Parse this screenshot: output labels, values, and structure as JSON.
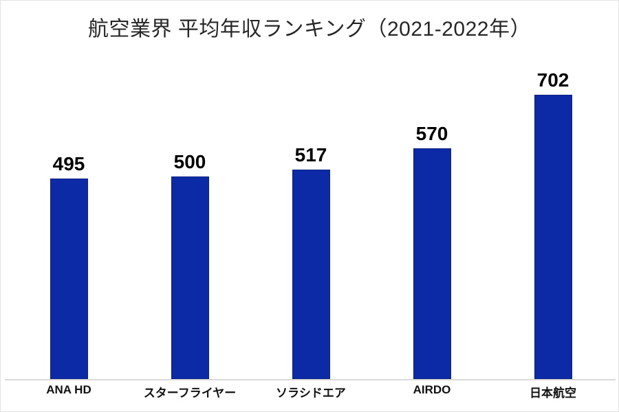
{
  "page": {
    "background": "#ffffff",
    "border_color": "#e3e3e3"
  },
  "chart_data": {
    "type": "bar",
    "title": "航空業界 平均年収ランキング（2021-2022年）",
    "categories": [
      "ANA HD",
      "スターフライヤー",
      "ソラシドエア",
      "AIRDO",
      "日本航空"
    ],
    "values": [
      495,
      500,
      517,
      570,
      702
    ],
    "data_labels_shown": true,
    "xlabel": "",
    "ylabel": "",
    "ylim": [
      0,
      702
    ],
    "grid": false,
    "legend_position": "none",
    "bar_color": "#0c2aa6",
    "title_color": "#262626",
    "value_label_color": "#000000",
    "category_label_color": "#111111",
    "axis_line_color": "#d9d9d9"
  }
}
